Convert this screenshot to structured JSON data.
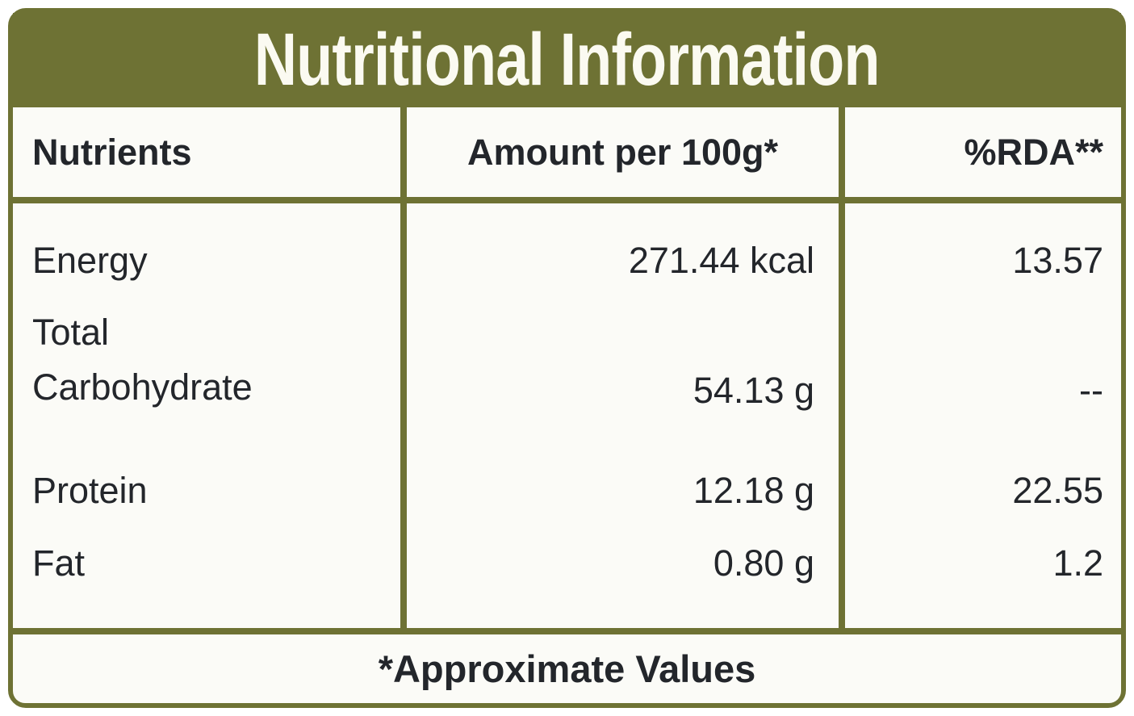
{
  "title": "Nutritional Information",
  "table": {
    "columns": {
      "nutrient": "Nutrients",
      "amount": "Amount per 100g*",
      "rda": "%RDA**"
    },
    "rows": [
      {
        "nutrient": "Energy",
        "amount": "271.44 kcal",
        "rda": "13.57"
      },
      {
        "nutrient": "Total Carbohydrate",
        "amount": "54.13 g",
        "rda": "--"
      },
      {
        "nutrient": "Protein",
        "amount": "12.18 g",
        "rda": "22.55"
      },
      {
        "nutrient": "Fat",
        "amount": "0.80 g",
        "rda": "1.2"
      }
    ]
  },
  "footnote": "*Approximate Values",
  "colors": {
    "accent_olive": "#6e7234",
    "surface": "#fbfbf7",
    "text": "#23262b",
    "title_text": "#fbfaf1"
  }
}
